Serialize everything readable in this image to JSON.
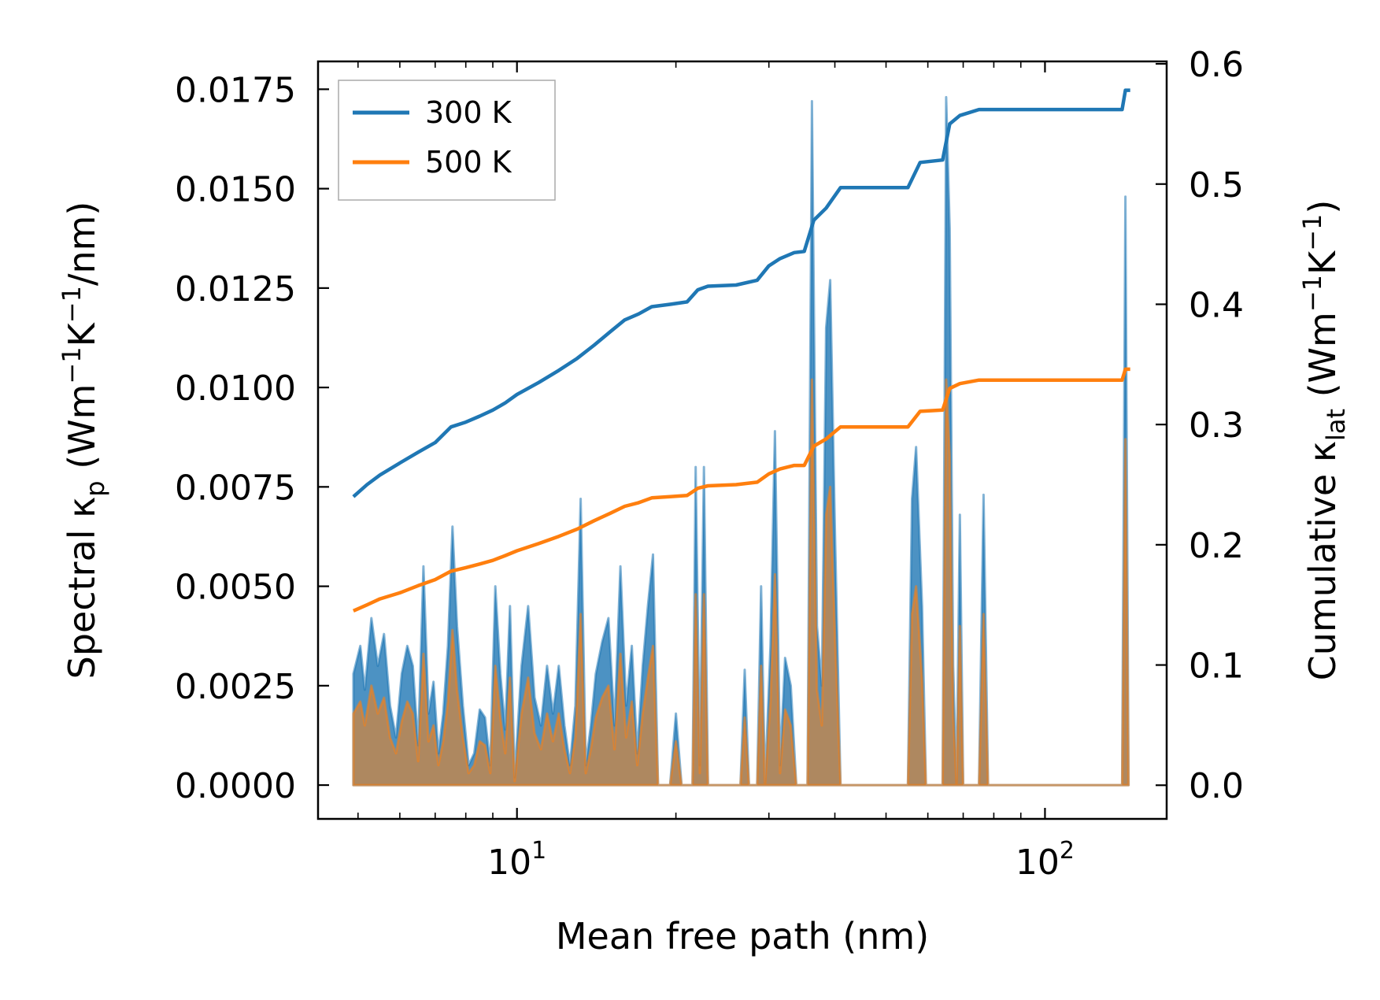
{
  "chart_data": {
    "type": "line",
    "xscale": "log",
    "xlabel": "Mean free path (nm)",
    "xlim": [
      4.2,
      170
    ],
    "x_ticks": [
      {
        "value": 10,
        "base": "10",
        "exp": "1"
      },
      {
        "value": 100,
        "base": "10",
        "exp": "2"
      }
    ],
    "left_axis": {
      "label_main": "Spectral κ",
      "label_sub": "p",
      "label_unit_open": " (Wm",
      "label_sup1": "−1",
      "label_unit_mid": "K",
      "label_sup2": "−1",
      "label_unit_close": "/nm)",
      "ylim": [
        -0.00085,
        0.0182
      ],
      "ticks": [
        "0.0000",
        "0.0025",
        "0.0050",
        "0.0075",
        "0.0100",
        "0.0125",
        "0.0150",
        "0.0175"
      ]
    },
    "right_axis": {
      "label_main": "Cumulative κ",
      "label_sub": "lat",
      "label_unit_open": " (Wm",
      "label_sup1": "−1",
      "label_unit_mid": "K",
      "label_sup2": "−1",
      "label_unit_close": ")",
      "ylim": [
        -0.028,
        0.602
      ],
      "ticks": [
        "0.0",
        "0.1",
        "0.2",
        "0.3",
        "0.4",
        "0.5",
        "0.6"
      ]
    },
    "legend": {
      "position": "top-left",
      "entries": [
        {
          "label": "300 K",
          "color": "#1f77b4"
        },
        {
          "label": "500 K",
          "color": "#ff7f0e"
        }
      ]
    },
    "spectral_series": [
      {
        "name": "300 K",
        "color": "#1f77b4",
        "points": [
          [
            4.9,
            0
          ],
          [
            4.9,
            0.0028
          ],
          [
            5.05,
            0.0035
          ],
          [
            5.15,
            0.0024
          ],
          [
            5.3,
            0.0042
          ],
          [
            5.45,
            0.003
          ],
          [
            5.6,
            0.0038
          ],
          [
            5.75,
            0.002
          ],
          [
            5.9,
            0.0012
          ],
          [
            6.05,
            0.0028
          ],
          [
            6.2,
            0.0035
          ],
          [
            6.35,
            0.003
          ],
          [
            6.5,
            0.001
          ],
          [
            6.65,
            0.0055
          ],
          [
            6.8,
            0.0018
          ],
          [
            6.95,
            0.0026
          ],
          [
            7.1,
            0.0008
          ],
          [
            7.25,
            0.0018
          ],
          [
            7.4,
            0.0035
          ],
          [
            7.55,
            0.0065
          ],
          [
            7.7,
            0.004
          ],
          [
            7.9,
            0.002
          ],
          [
            8.1,
            0.0005
          ],
          [
            8.3,
            0.0008
          ],
          [
            8.5,
            0.0019
          ],
          [
            8.7,
            0.0017
          ],
          [
            8.9,
            0.0005
          ],
          [
            9.1,
            0.005
          ],
          [
            9.3,
            0.0028
          ],
          [
            9.5,
            0.0014
          ],
          [
            9.7,
            0.0045
          ],
          [
            9.9,
            0.0002
          ],
          [
            10.2,
            0.003
          ],
          [
            10.5,
            0.0045
          ],
          [
            10.8,
            0.0022
          ],
          [
            11.1,
            0.0015
          ],
          [
            11.4,
            0.003
          ],
          [
            11.7,
            0.0018
          ],
          [
            12.0,
            0.003
          ],
          [
            12.3,
            0.0015
          ],
          [
            12.6,
            0.0005
          ],
          [
            12.9,
            0.002
          ],
          [
            13.2,
            0.0072
          ],
          [
            13.5,
            0.0005
          ],
          [
            13.8,
            0.0015
          ],
          [
            14.1,
            0.0028
          ],
          [
            14.5,
            0.0036
          ],
          [
            14.9,
            0.0042
          ],
          [
            15.3,
            0.0015
          ],
          [
            15.7,
            0.0055
          ],
          [
            16.1,
            0.002
          ],
          [
            16.5,
            0.0035
          ],
          [
            16.9,
            0.0008
          ],
          [
            17.3,
            0.003
          ],
          [
            17.7,
            0.0045
          ],
          [
            18.1,
            0.0058
          ],
          [
            18.5,
            0
          ],
          [
            19.5,
            0
          ],
          [
            20.0,
            0.0018
          ],
          [
            20.5,
            0
          ],
          [
            21.5,
            0
          ],
          [
            21.8,
            0.008
          ],
          [
            22.2,
            0.0005
          ],
          [
            22.6,
            0.008
          ],
          [
            23.0,
            0
          ],
          [
            26.5,
            0
          ],
          [
            27.0,
            0.0029
          ],
          [
            27.5,
            0
          ],
          [
            28.5,
            0
          ],
          [
            29.0,
            0.005
          ],
          [
            29.5,
            0
          ],
          [
            30.2,
            0.0035
          ],
          [
            30.8,
            0.0089
          ],
          [
            31.5,
            0.0005
          ],
          [
            32.2,
            0.0032
          ],
          [
            33.0,
            0.0025
          ],
          [
            33.8,
            0
          ],
          [
            35.5,
            0
          ],
          [
            36.2,
            0.0172
          ],
          [
            37.0,
            0.004
          ],
          [
            37.8,
            0.0025
          ],
          [
            38.5,
            0.0115
          ],
          [
            39.2,
            0.0127
          ],
          [
            40.0,
            0.0065
          ],
          [
            41.0,
            0
          ],
          [
            55.0,
            0
          ],
          [
            56.0,
            0.0072
          ],
          [
            57.0,
            0.0085
          ],
          [
            58.5,
            0.0045
          ],
          [
            59.5,
            0
          ],
          [
            64.0,
            0
          ],
          [
            65.0,
            0.0173
          ],
          [
            66.0,
            0.014
          ],
          [
            67.0,
            0.003
          ],
          [
            68.0,
            0
          ],
          [
            69.0,
            0.0068
          ],
          [
            70.0,
            0
          ],
          [
            75.0,
            0
          ],
          [
            76.5,
            0.0073
          ],
          [
            78.0,
            0
          ],
          [
            140.0,
            0
          ],
          [
            142.0,
            0.0148
          ],
          [
            144.0,
            0
          ]
        ]
      },
      {
        "name": "500 K",
        "color": "#ff7f0e",
        "points": [
          [
            4.9,
            0
          ],
          [
            4.9,
            0.0018
          ],
          [
            5.05,
            0.0021
          ],
          [
            5.15,
            0.0015
          ],
          [
            5.3,
            0.0025
          ],
          [
            5.45,
            0.0018
          ],
          [
            5.6,
            0.0022
          ],
          [
            5.75,
            0.0012
          ],
          [
            5.9,
            0.0008
          ],
          [
            6.05,
            0.0016
          ],
          [
            6.2,
            0.0021
          ],
          [
            6.35,
            0.0018
          ],
          [
            6.5,
            0.0006
          ],
          [
            6.65,
            0.0033
          ],
          [
            6.8,
            0.0011
          ],
          [
            6.95,
            0.0015
          ],
          [
            7.1,
            0.0005
          ],
          [
            7.25,
            0.0011
          ],
          [
            7.4,
            0.0021
          ],
          [
            7.55,
            0.0039
          ],
          [
            7.7,
            0.0024
          ],
          [
            7.9,
            0.0012
          ],
          [
            8.1,
            0.0003
          ],
          [
            8.3,
            0.0005
          ],
          [
            8.5,
            0.0011
          ],
          [
            8.7,
            0.001
          ],
          [
            8.9,
            0.0003
          ],
          [
            9.1,
            0.003
          ],
          [
            9.3,
            0.0017
          ],
          [
            9.5,
            0.0008
          ],
          [
            9.7,
            0.0027
          ],
          [
            9.9,
            0.0001
          ],
          [
            10.2,
            0.0018
          ],
          [
            10.5,
            0.0027
          ],
          [
            10.8,
            0.0013
          ],
          [
            11.1,
            0.0009
          ],
          [
            11.4,
            0.0018
          ],
          [
            11.7,
            0.0011
          ],
          [
            12.0,
            0.0018
          ],
          [
            12.3,
            0.0009
          ],
          [
            12.6,
            0.0003
          ],
          [
            12.9,
            0.0012
          ],
          [
            13.2,
            0.0043
          ],
          [
            13.5,
            0.0003
          ],
          [
            13.8,
            0.0009
          ],
          [
            14.1,
            0.0017
          ],
          [
            14.5,
            0.0022
          ],
          [
            14.9,
            0.0025
          ],
          [
            15.3,
            0.0009
          ],
          [
            15.7,
            0.0033
          ],
          [
            16.1,
            0.0012
          ],
          [
            16.5,
            0.0021
          ],
          [
            16.9,
            0.0005
          ],
          [
            17.3,
            0.0018
          ],
          [
            17.7,
            0.0027
          ],
          [
            18.1,
            0.0035
          ],
          [
            18.5,
            0
          ],
          [
            19.5,
            0
          ],
          [
            20.0,
            0.0011
          ],
          [
            20.5,
            0
          ],
          [
            21.5,
            0
          ],
          [
            21.8,
            0.0048
          ],
          [
            22.2,
            0.0003
          ],
          [
            22.6,
            0.0048
          ],
          [
            23.0,
            0
          ],
          [
            26.5,
            0
          ],
          [
            27.0,
            0.0017
          ],
          [
            27.5,
            0
          ],
          [
            28.5,
            0
          ],
          [
            29.0,
            0.003
          ],
          [
            29.5,
            0
          ],
          [
            30.2,
            0.0021
          ],
          [
            30.8,
            0.0053
          ],
          [
            31.5,
            0.0003
          ],
          [
            32.2,
            0.0019
          ],
          [
            33.0,
            0.0015
          ],
          [
            33.8,
            0
          ],
          [
            35.5,
            0
          ],
          [
            36.2,
            0.0102
          ],
          [
            37.0,
            0.0024
          ],
          [
            37.8,
            0.0015
          ],
          [
            38.5,
            0.0068
          ],
          [
            39.2,
            0.0075
          ],
          [
            40.0,
            0.0039
          ],
          [
            41.0,
            0
          ],
          [
            55.0,
            0
          ],
          [
            56.0,
            0.0043
          ],
          [
            57.0,
            0.005
          ],
          [
            58.5,
            0.0027
          ],
          [
            59.5,
            0
          ],
          [
            64.0,
            0
          ],
          [
            65.0,
            0.0102
          ],
          [
            66.0,
            0.0083
          ],
          [
            67.0,
            0.0018
          ],
          [
            68.0,
            0
          ],
          [
            69.0,
            0.004
          ],
          [
            70.0,
            0
          ],
          [
            75.0,
            0
          ],
          [
            76.5,
            0.0043
          ],
          [
            78.0,
            0
          ],
          [
            140.0,
            0
          ],
          [
            142.0,
            0.0087
          ],
          [
            144.0,
            0
          ]
        ]
      }
    ],
    "cumulative_series": [
      {
        "name": "300 K",
        "color": "#1f77b4",
        "points": [
          [
            4.9,
            0.24
          ],
          [
            5.2,
            0.25
          ],
          [
            5.5,
            0.258
          ],
          [
            6.0,
            0.268
          ],
          [
            6.5,
            0.277
          ],
          [
            7.0,
            0.285
          ],
          [
            7.5,
            0.298
          ],
          [
            8.0,
            0.302
          ],
          [
            8.5,
            0.307
          ],
          [
            9.0,
            0.312
          ],
          [
            9.5,
            0.318
          ],
          [
            10.0,
            0.325
          ],
          [
            11.0,
            0.335
          ],
          [
            12.0,
            0.345
          ],
          [
            13.0,
            0.355
          ],
          [
            14.0,
            0.366
          ],
          [
            15.0,
            0.377
          ],
          [
            16.0,
            0.387
          ],
          [
            17.0,
            0.392
          ],
          [
            18.0,
            0.398
          ],
          [
            19.5,
            0.4
          ],
          [
            21.0,
            0.402
          ],
          [
            22.0,
            0.412
          ],
          [
            23.0,
            0.415
          ],
          [
            26.0,
            0.416
          ],
          [
            28.5,
            0.42
          ],
          [
            30.0,
            0.432
          ],
          [
            31.5,
            0.438
          ],
          [
            33.5,
            0.443
          ],
          [
            35.0,
            0.444
          ],
          [
            36.5,
            0.47
          ],
          [
            38.5,
            0.48
          ],
          [
            41.0,
            0.497
          ],
          [
            55.0,
            0.497
          ],
          [
            58.0,
            0.518
          ],
          [
            64.0,
            0.52
          ],
          [
            66.0,
            0.55
          ],
          [
            69.0,
            0.557
          ],
          [
            75.0,
            0.562
          ],
          [
            140.0,
            0.562
          ],
          [
            142.0,
            0.578
          ],
          [
            145.0,
            0.578
          ]
        ]
      },
      {
        "name": "500 K",
        "color": "#ff7f0e",
        "points": [
          [
            4.9,
            0.145
          ],
          [
            5.2,
            0.15
          ],
          [
            5.5,
            0.155
          ],
          [
            6.0,
            0.16
          ],
          [
            6.5,
            0.166
          ],
          [
            7.0,
            0.171
          ],
          [
            7.5,
            0.178
          ],
          [
            8.0,
            0.181
          ],
          [
            8.5,
            0.184
          ],
          [
            9.0,
            0.187
          ],
          [
            9.5,
            0.191
          ],
          [
            10.0,
            0.195
          ],
          [
            11.0,
            0.201
          ],
          [
            12.0,
            0.207
          ],
          [
            13.0,
            0.213
          ],
          [
            14.0,
            0.22
          ],
          [
            15.0,
            0.226
          ],
          [
            16.0,
            0.232
          ],
          [
            17.0,
            0.235
          ],
          [
            18.0,
            0.239
          ],
          [
            19.5,
            0.24
          ],
          [
            21.0,
            0.241
          ],
          [
            22.0,
            0.247
          ],
          [
            23.0,
            0.249
          ],
          [
            26.0,
            0.25
          ],
          [
            28.5,
            0.252
          ],
          [
            30.0,
            0.259
          ],
          [
            31.5,
            0.263
          ],
          [
            33.5,
            0.266
          ],
          [
            35.0,
            0.266
          ],
          [
            36.5,
            0.282
          ],
          [
            38.5,
            0.288
          ],
          [
            41.0,
            0.298
          ],
          [
            55.0,
            0.298
          ],
          [
            58.0,
            0.311
          ],
          [
            64.0,
            0.312
          ],
          [
            66.0,
            0.33
          ],
          [
            69.0,
            0.334
          ],
          [
            75.0,
            0.337
          ],
          [
            140.0,
            0.337
          ],
          [
            142.0,
            0.346
          ],
          [
            145.0,
            0.346
          ]
        ]
      }
    ]
  }
}
